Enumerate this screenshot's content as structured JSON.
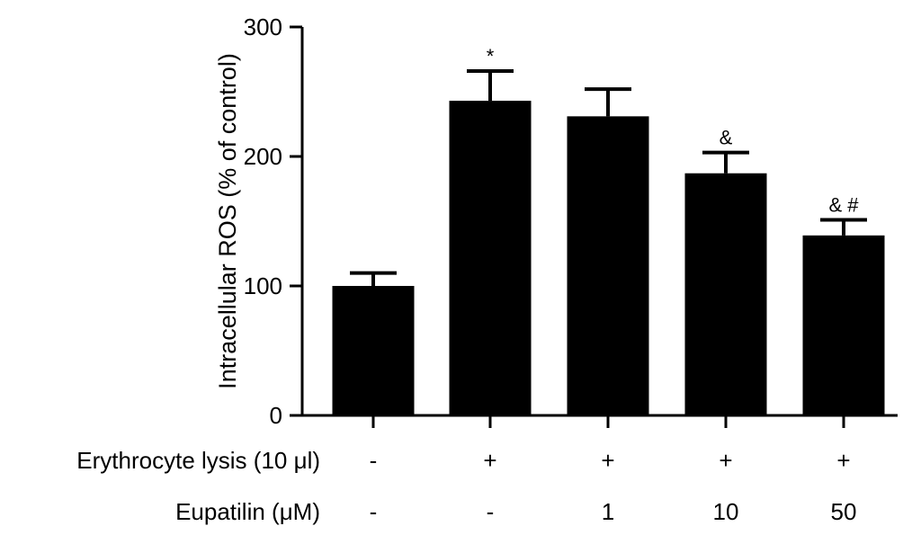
{
  "chart_data": {
    "type": "bar",
    "title": "",
    "xlabel": "",
    "ylabel": "Intracellular ROS (% of control)",
    "ylim": [
      0,
      300
    ],
    "yticks": [
      0,
      100,
      200,
      300
    ],
    "grid": false,
    "legend": "none",
    "bar_color": "#000000",
    "series": [
      {
        "values": [
          100,
          243,
          231,
          187,
          139
        ],
        "errors": [
          10,
          23,
          21,
          16,
          12
        ],
        "annotations": [
          "",
          "*",
          "",
          "&",
          "& #"
        ]
      }
    ],
    "conditions": [
      {
        "label": "Erythrocyte lysis (10 μl)",
        "values": [
          "-",
          "+",
          "+",
          "+",
          "+"
        ]
      },
      {
        "label": "Eupatilin (μM)",
        "values": [
          "-",
          "-",
          "1",
          "10",
          "50"
        ]
      }
    ]
  }
}
